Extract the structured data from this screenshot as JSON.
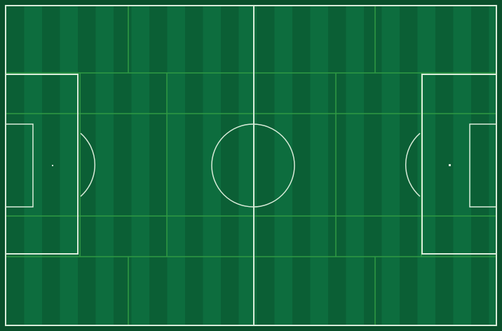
{
  "pitch": {
    "colors": {
      "stripe_dark": "#0b5f35",
      "stripe_light": "#0d6d3e",
      "border": "#0a4f2b",
      "line": "#d9ecd9",
      "zone_line": "#2f9a43"
    },
    "zones": {
      "horizontal_bands": 5,
      "outer_band_columns": 4,
      "middle_band_columns": 6
    },
    "markings": [
      "touchline",
      "halfway-line",
      "center-circle",
      "left-penalty-area",
      "right-penalty-area",
      "left-goal-area",
      "right-goal-area",
      "left-penalty-spot",
      "right-penalty-spot",
      "left-penalty-arc",
      "right-penalty-arc"
    ]
  }
}
